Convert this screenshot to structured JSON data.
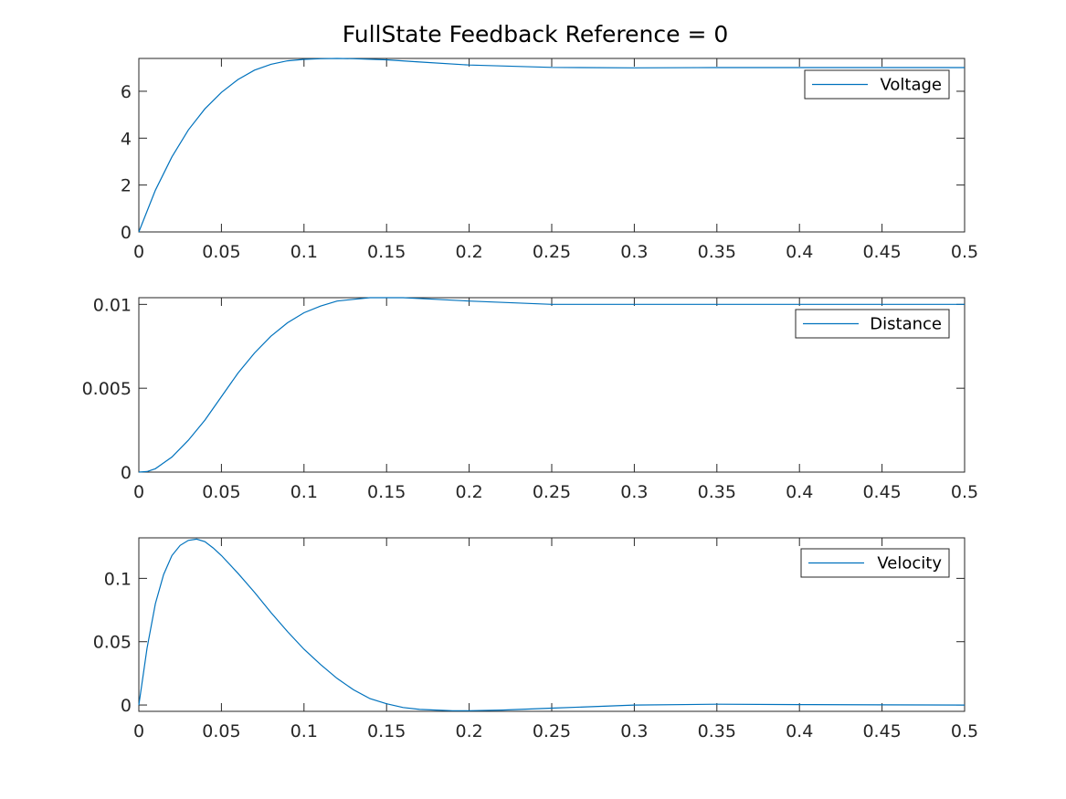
{
  "chart_data": {
    "title": "FullState Feedback Reference = 0",
    "series_color": "#0072BD",
    "grid": false,
    "x_ticks": [
      0,
      0.05,
      0.1,
      0.15,
      0.2,
      0.25,
      0.3,
      0.35,
      0.4,
      0.45,
      0.5
    ],
    "x_tick_labels": [
      "0",
      "0.05",
      "0.1",
      "0.15",
      "0.2",
      "0.25",
      "0.3",
      "0.35",
      "0.4",
      "0.45",
      "0.5"
    ],
    "plots": [
      {
        "type": "line",
        "xlim": [
          0,
          0.5
        ],
        "ylim": [
          0,
          7.4
        ],
        "y_ticks": [
          0,
          2,
          4,
          6
        ],
        "y_tick_labels": [
          "0",
          "2",
          "4",
          "6"
        ],
        "legend_placement": "top-right",
        "series": [
          {
            "name": "Voltage",
            "x": [
              0,
              0.01,
              0.02,
              0.03,
              0.04,
              0.05,
              0.06,
              0.07,
              0.08,
              0.09,
              0.1,
              0.11,
              0.12,
              0.13,
              0.15,
              0.17,
              0.2,
              0.25,
              0.3,
              0.35,
              0.4,
              0.45,
              0.5
            ],
            "y": [
              0,
              1.78,
              3.2,
              4.35,
              5.25,
              5.95,
              6.5,
              6.9,
              7.15,
              7.3,
              7.36,
              7.39,
              7.4,
              7.39,
              7.34,
              7.25,
              7.12,
              7.02,
              7.0,
              7.01,
              7.01,
              7.01,
              7.01
            ]
          }
        ]
      },
      {
        "type": "line",
        "xlim": [
          0,
          0.5
        ],
        "ylim": [
          0,
          0.0104
        ],
        "y_ticks": [
          0,
          0.005,
          0.01
        ],
        "y_tick_labels": [
          "0",
          "0.005",
          "0.01"
        ],
        "legend_placement": "top-right",
        "series": [
          {
            "name": "Distance",
            "x": [
              0,
              0.005,
              0.01,
              0.02,
              0.03,
              0.04,
              0.05,
              0.06,
              0.07,
              0.08,
              0.09,
              0.1,
              0.11,
              0.12,
              0.13,
              0.14,
              0.15,
              0.16,
              0.18,
              0.2,
              0.25,
              0.3,
              0.35,
              0.4,
              0.45,
              0.5
            ],
            "y": [
              0,
              3e-05,
              0.0002,
              0.0009,
              0.0019,
              0.0031,
              0.0045,
              0.0059,
              0.0071,
              0.0081,
              0.0089,
              0.0095,
              0.0099,
              0.0102,
              0.0103,
              0.0104,
              0.0104,
              0.0104,
              0.0103,
              0.0102,
              0.01,
              0.01,
              0.01,
              0.01,
              0.01,
              0.01
            ]
          }
        ]
      },
      {
        "type": "line",
        "xlim": [
          0,
          0.5
        ],
        "ylim": [
          -0.005,
          0.132
        ],
        "y_ticks": [
          0,
          0.05,
          0.1
        ],
        "y_tick_labels": [
          "0",
          "0.05",
          "0.1"
        ],
        "legend_placement": "top-right",
        "series": [
          {
            "name": "Velocity",
            "x": [
              0,
              0.005,
              0.01,
              0.015,
              0.02,
              0.025,
              0.03,
              0.035,
              0.04,
              0.045,
              0.05,
              0.06,
              0.07,
              0.08,
              0.09,
              0.1,
              0.11,
              0.12,
              0.13,
              0.14,
              0.15,
              0.16,
              0.17,
              0.18,
              0.19,
              0.2,
              0.22,
              0.25,
              0.28,
              0.3,
              0.35,
              0.4,
              0.45,
              0.5
            ],
            "y": [
              0,
              0.045,
              0.08,
              0.103,
              0.118,
              0.126,
              0.13,
              0.131,
              0.129,
              0.124,
              0.118,
              0.104,
              0.089,
              0.073,
              0.058,
              0.044,
              0.032,
              0.021,
              0.012,
              0.005,
              0.001,
              -0.002,
              -0.0035,
              -0.004,
              -0.0045,
              -0.0045,
              -0.004,
              -0.0025,
              -0.001,
              0.0,
              0.0006,
              0.0003,
              0.0001,
              0.0
            ]
          }
        ]
      }
    ]
  }
}
